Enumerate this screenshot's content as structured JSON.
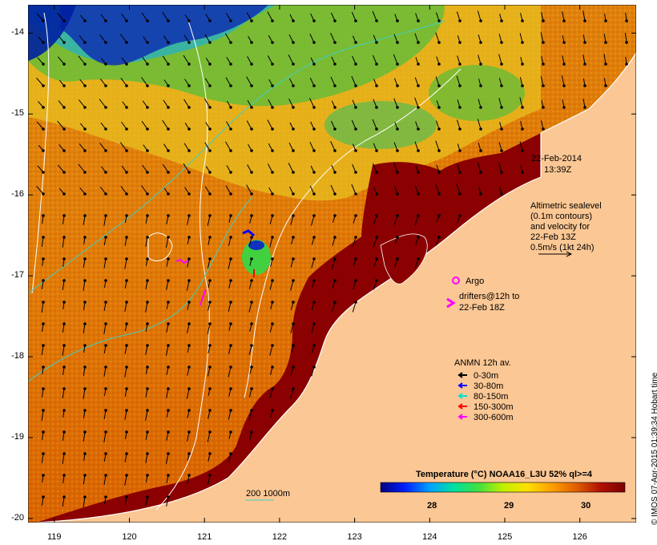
{
  "map": {
    "lon_ticks": [
      "119",
      "120",
      "121",
      "122",
      "123",
      "124",
      "125",
      "126"
    ],
    "lat_ticks": [
      "-14",
      "-15",
      "-16",
      "-17",
      "-18",
      "-19",
      "-20"
    ],
    "lon_range": [
      118.65,
      126.75
    ],
    "lat_range": [
      -20.05,
      -13.65
    ],
    "timestamp": {
      "date": "22-Feb-2014",
      "time": "13:39Z"
    },
    "altimetry_note": [
      "Altimetric sealevel",
      "(0.1m contours)",
      "and velocity for",
      "22-Feb 13Z",
      "0.5m/s (1kt 24h)"
    ],
    "argo_label": "Argo",
    "drifters_note": [
      "drifters@12h to",
      "22-Feb 18Z"
    ],
    "isobath_label": "200  1000m",
    "colors": {
      "land": "#fbc794",
      "sst_warm": "#8b0000",
      "sst_mid": "#e69500",
      "sst_cool": "#33cc33",
      "sst_cold": "#1f3fbf",
      "contour": "#ffffff",
      "isobath": "#40d0c0"
    }
  },
  "legend": {
    "title": "ANMN 12h av.",
    "items": [
      {
        "label": "0-30m",
        "color": "#000000"
      },
      {
        "label": "30-80m",
        "color": "#0000ff"
      },
      {
        "label": "80-150m",
        "color": "#00e0d0"
      },
      {
        "label": "150-300m",
        "color": "#ff0000"
      },
      {
        "label": "300-600m",
        "color": "#ff00ff"
      }
    ]
  },
  "colorbar": {
    "title": "Temperature (°C) NOAA16_L3U 52% ql>=4",
    "tick_labels": [
      "28",
      "29",
      "30"
    ],
    "stops": [
      "#00007f",
      "#0020ff",
      "#00a0ff",
      "#00e0a0",
      "#40e040",
      "#c0f000",
      "#ffe000",
      "#ffa000",
      "#e06000",
      "#b01000",
      "#7a0000"
    ]
  },
  "credit": "© IMOS 07-Apr-2015 01:39:34 Hobart time"
}
